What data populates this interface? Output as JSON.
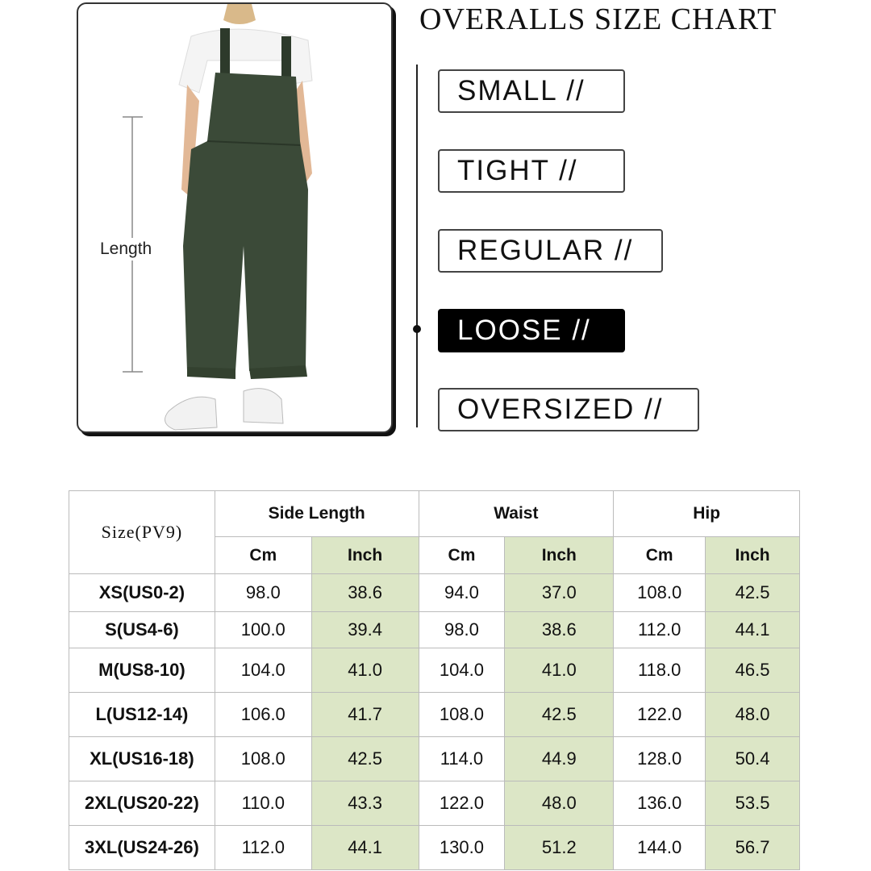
{
  "title": "OVERALLS SIZE CHART",
  "photo": {
    "length_label": "Length",
    "garment_color": "#3b4a38"
  },
  "fits": [
    {
      "label": "SMALL //",
      "active": false
    },
    {
      "label": "TIGHT //",
      "active": false
    },
    {
      "label": "REGULAR //",
      "active": false
    },
    {
      "label": "LOOSE //",
      "active": true
    },
    {
      "label": "OVERSIZED //",
      "active": false
    }
  ],
  "table": {
    "size_header": "Size(PV9)",
    "groups": [
      "Side Length",
      "Waist",
      "Hip"
    ],
    "units": [
      "Cm",
      "Inch",
      "Cm",
      "Inch",
      "Cm",
      "Inch"
    ],
    "highlight_color": "#dce6c6",
    "rows": [
      [
        "XS(US0-2)",
        "98.0",
        "38.6",
        "94.0",
        "37.0",
        "108.0",
        "42.5"
      ],
      [
        "S(US4-6)",
        "100.0",
        "39.4",
        "98.0",
        "38.6",
        "112.0",
        "44.1"
      ],
      [
        "M(US8-10)",
        "104.0",
        "41.0",
        "104.0",
        "41.0",
        "118.0",
        "46.5"
      ],
      [
        "L(US12-14)",
        "106.0",
        "41.7",
        "108.0",
        "42.5",
        "122.0",
        "48.0"
      ],
      [
        "XL(US16-18)",
        "108.0",
        "42.5",
        "114.0",
        "44.9",
        "128.0",
        "50.4"
      ],
      [
        "2XL(US20-22)",
        "110.0",
        "43.3",
        "122.0",
        "48.0",
        "136.0",
        "53.5"
      ],
      [
        "3XL(US24-26)",
        "112.0",
        "44.1",
        "130.0",
        "51.2",
        "144.0",
        "56.7"
      ]
    ]
  }
}
